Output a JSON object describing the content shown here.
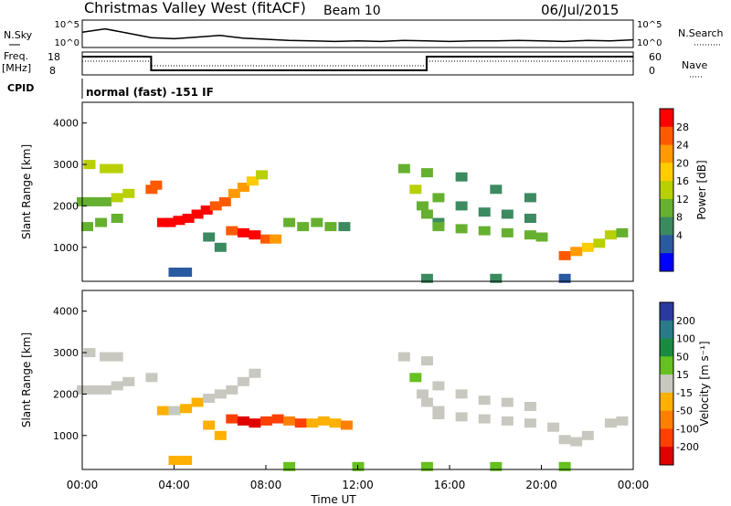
{
  "header": {
    "title": "Christmas Valley West (fitACF)",
    "beam": "Beam 10",
    "date": "06/Jul/2015"
  },
  "params": {
    "nsky_label": "N.Sky",
    "nsky_ticks": [
      "10^5",
      "10^0"
    ],
    "nsearch_label": "N.Search",
    "freq_label": "Freq.",
    "freq_unit": "[MHz]",
    "freq_ticks": [
      "18",
      "8"
    ],
    "nave_label": "Nave",
    "nave_ticks": [
      "60",
      "0"
    ],
    "cpid_label": "CPID",
    "cpid_text": "normal (fast) -151 IF"
  },
  "axes": {
    "xlabel": "Time UT",
    "ylabel": "Slant Range [km]",
    "xticks": [
      "00:00",
      "04:00",
      "08:00",
      "12:00",
      "16:00",
      "20:00",
      "00:00"
    ],
    "yticks": [
      "1000",
      "2000",
      "3000",
      "4000"
    ]
  },
  "colorbars": {
    "power": {
      "label": "Power [dB]",
      "ticks": [
        "28",
        "24",
        "20",
        "16",
        "12",
        "8",
        "4"
      ],
      "colors": [
        "#ff0000",
        "#ff5a00",
        "#ff9a00",
        "#ffcc00",
        "#b8d000",
        "#66b030",
        "#3c8a60",
        "#2a5aa0",
        "#0000ff"
      ]
    },
    "velocity": {
      "label": "Velocity [m s⁻¹]",
      "ticks": [
        "200",
        "100",
        "50",
        "15",
        "-15",
        "-50",
        "-100",
        "-200"
      ],
      "colors": [
        "#2a3aa0",
        "#2a7a8a",
        "#1a8a40",
        "#66c020",
        "#c8c8c0",
        "#ffb000",
        "#ff8000",
        "#ff4000",
        "#e00000"
      ]
    }
  },
  "chart_data": [
    {
      "type": "line",
      "title": "N.Sky / N.Search",
      "x": [
        0,
        1,
        2,
        3,
        4,
        5,
        6,
        7,
        8,
        9,
        10,
        11,
        12,
        13,
        14,
        15,
        16,
        17,
        18,
        19,
        20,
        21,
        22,
        23,
        24
      ],
      "series": [
        {
          "values": [
            2.8,
            3.4,
            2.6,
            1.8,
            1.6,
            1.9,
            2.2,
            1.7,
            1.5,
            1.3,
            1.2,
            1.1,
            1.2,
            1.1,
            1.3,
            1.2,
            1.1,
            1.2,
            1.2,
            1.3,
            1.2,
            1.1,
            1.3,
            1.2,
            1.4
          ]
        }
      ],
      "ylim": [
        0,
        5
      ],
      "ylabel": "N.Sky"
    },
    {
      "type": "line",
      "title": "Freq. / Nave",
      "x": [
        0,
        3,
        3,
        15,
        15,
        24
      ],
      "series": [
        {
          "values": [
            16,
            16,
            10,
            10,
            16,
            16
          ]
        },
        {
          "values": [
            14,
            14,
            12,
            12,
            14,
            14
          ]
        }
      ],
      "ylim": [
        8,
        18
      ],
      "ylabel": "Freq. [MHz]"
    },
    {
      "type": "heatmap",
      "title": "Power",
      "xlabel": "Time UT",
      "ylabel": "Slant Range [km]",
      "xlim": [
        0,
        24
      ],
      "ylim": [
        180,
        4500
      ],
      "value_label": "Power [dB]",
      "vlim": [
        0,
        30
      ],
      "cells": [
        [
          0.0,
          2100,
          12
        ],
        [
          0.5,
          2100,
          12
        ],
        [
          1.0,
          2100,
          12
        ],
        [
          1.5,
          2200,
          14
        ],
        [
          2.0,
          2300,
          16
        ],
        [
          0.3,
          3000,
          14
        ],
        [
          1.0,
          2900,
          16
        ],
        [
          1.5,
          2900,
          14
        ],
        [
          0.2,
          1500,
          10
        ],
        [
          0.8,
          1600,
          12
        ],
        [
          1.5,
          1700,
          12
        ],
        [
          3.0,
          2400,
          24
        ],
        [
          3.2,
          2500,
          26
        ],
        [
          3.5,
          1600,
          30
        ],
        [
          3.8,
          1600,
          30
        ],
        [
          4.2,
          1650,
          30
        ],
        [
          4.6,
          1700,
          30
        ],
        [
          5.0,
          1800,
          28
        ],
        [
          5.4,
          1900,
          28
        ],
        [
          5.8,
          2000,
          26
        ],
        [
          6.2,
          2100,
          24
        ],
        [
          6.6,
          2300,
          22
        ],
        [
          7.0,
          2450,
          20
        ],
        [
          7.4,
          2600,
          18
        ],
        [
          7.8,
          2750,
          16
        ],
        [
          6.5,
          1400,
          26
        ],
        [
          7.0,
          1350,
          30
        ],
        [
          7.5,
          1300,
          28
        ],
        [
          8.0,
          1200,
          24
        ],
        [
          8.4,
          1200,
          20
        ],
        [
          9.0,
          1600,
          10
        ],
        [
          9.6,
          1500,
          12
        ],
        [
          10.2,
          1600,
          10
        ],
        [
          10.8,
          1500,
          12
        ],
        [
          11.4,
          1500,
          8
        ],
        [
          5.5,
          1250,
          8
        ],
        [
          6.0,
          1000,
          8
        ],
        [
          4.0,
          400,
          6
        ],
        [
          4.5,
          400,
          4
        ],
        [
          14.5,
          2400,
          14
        ],
        [
          14.8,
          2000,
          12
        ],
        [
          15.0,
          1800,
          10
        ],
        [
          15.5,
          1600,
          8
        ],
        [
          15.5,
          2200,
          10
        ],
        [
          16.5,
          2000,
          8
        ],
        [
          17.5,
          1850,
          8
        ],
        [
          18.5,
          1800,
          8
        ],
        [
          19.5,
          1700,
          8
        ],
        [
          15.5,
          1500,
          10
        ],
        [
          16.5,
          1450,
          10
        ],
        [
          17.5,
          1400,
          12
        ],
        [
          18.5,
          1350,
          12
        ],
        [
          19.5,
          1300,
          12
        ],
        [
          20.0,
          1250,
          12
        ],
        [
          21.0,
          800,
          24
        ],
        [
          21.5,
          900,
          22
        ],
        [
          22.0,
          1000,
          18
        ],
        [
          22.5,
          1100,
          16
        ],
        [
          23.0,
          1300,
          14
        ],
        [
          23.5,
          1350,
          12
        ],
        [
          16.5,
          2700,
          8
        ],
        [
          18.0,
          2400,
          8
        ],
        [
          19.5,
          2200,
          8
        ],
        [
          14.0,
          2900,
          12
        ],
        [
          15.0,
          2800,
          10
        ],
        [
          15.0,
          250,
          8
        ],
        [
          18.0,
          250,
          8
        ],
        [
          21.0,
          250,
          6
        ]
      ]
    },
    {
      "type": "heatmap",
      "title": "Velocity",
      "xlabel": "Time UT",
      "ylabel": "Slant Range [km]",
      "xlim": [
        0,
        24
      ],
      "ylim": [
        180,
        4500
      ],
      "value_label": "Velocity [m s-1]",
      "vlim": [
        -250,
        250
      ],
      "cells": [
        [
          0.0,
          2100,
          0
        ],
        [
          0.5,
          2100,
          0
        ],
        [
          1.0,
          2100,
          0
        ],
        [
          1.5,
          2200,
          0
        ],
        [
          2.0,
          2300,
          0
        ],
        [
          0.3,
          3000,
          0
        ],
        [
          1.0,
          2900,
          0
        ],
        [
          1.5,
          2900,
          0
        ],
        [
          3.0,
          2400,
          0
        ],
        [
          3.5,
          1600,
          -30
        ],
        [
          4.0,
          1600,
          0
        ],
        [
          4.5,
          1650,
          -40
        ],
        [
          5.0,
          1800,
          -30
        ],
        [
          5.5,
          1900,
          0
        ],
        [
          6.0,
          2000,
          0
        ],
        [
          6.5,
          2100,
          0
        ],
        [
          7.0,
          2300,
          0
        ],
        [
          7.5,
          2500,
          0
        ],
        [
          6.5,
          1400,
          -180
        ],
        [
          7.0,
          1350,
          -220
        ],
        [
          7.5,
          1300,
          -200
        ],
        [
          8.0,
          1350,
          -180
        ],
        [
          8.5,
          1400,
          -150
        ],
        [
          9.0,
          1350,
          -120
        ],
        [
          9.5,
          1300,
          -150
        ],
        [
          10.0,
          1300,
          -80
        ],
        [
          10.5,
          1350,
          -60
        ],
        [
          11.0,
          1300,
          -70
        ],
        [
          11.5,
          1250,
          -90
        ],
        [
          5.5,
          1250,
          -60
        ],
        [
          6.0,
          1000,
          -70
        ],
        [
          4.0,
          400,
          -60
        ],
        [
          4.5,
          400,
          -40
        ],
        [
          14.5,
          2400,
          30
        ],
        [
          14.8,
          2000,
          0
        ],
        [
          15.0,
          1800,
          0
        ],
        [
          15.5,
          1600,
          0
        ],
        [
          15.5,
          2200,
          0
        ],
        [
          16.5,
          2000,
          0
        ],
        [
          17.5,
          1850,
          0
        ],
        [
          18.5,
          1800,
          0
        ],
        [
          19.5,
          1700,
          0
        ],
        [
          15.5,
          1500,
          0
        ],
        [
          16.5,
          1450,
          0
        ],
        [
          17.5,
          1400,
          0
        ],
        [
          18.5,
          1350,
          0
        ],
        [
          19.5,
          1300,
          0
        ],
        [
          20.5,
          1200,
          0
        ],
        [
          21.0,
          900,
          0
        ],
        [
          21.5,
          850,
          0
        ],
        [
          22.0,
          1000,
          0
        ],
        [
          23.0,
          1300,
          0
        ],
        [
          23.5,
          1350,
          0
        ],
        [
          14.0,
          2900,
          0
        ],
        [
          15.0,
          2800,
          0
        ],
        [
          9.0,
          250,
          30
        ],
        [
          12.0,
          250,
          30
        ],
        [
          15.0,
          250,
          40
        ],
        [
          18.0,
          250,
          30
        ],
        [
          21.0,
          250,
          30
        ]
      ]
    }
  ]
}
